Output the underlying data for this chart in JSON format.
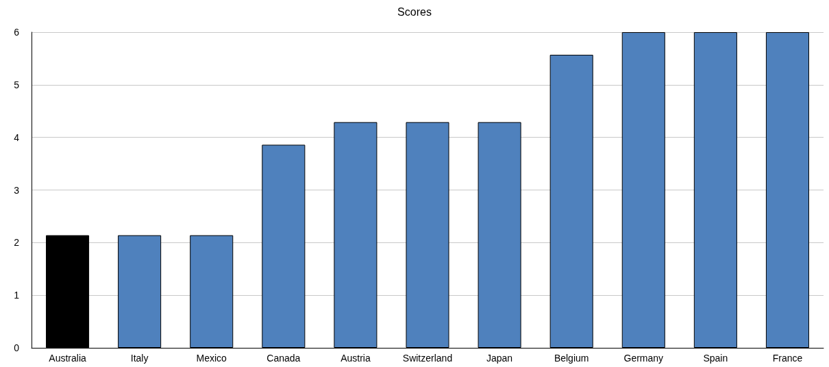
{
  "chart_data": {
    "type": "bar",
    "title": "Scores",
    "categories": [
      "Australia",
      "Italy",
      "Mexico",
      "Canada",
      "Austria",
      "Switzerland",
      "Japan",
      "Belgium",
      "Germany",
      "Spain",
      "France"
    ],
    "values": [
      2.14,
      2.14,
      2.14,
      3.86,
      4.29,
      4.29,
      4.29,
      5.57,
      6,
      6,
      6
    ],
    "colors": [
      "#000000",
      "#4f81bd",
      "#4f81bd",
      "#4f81bd",
      "#4f81bd",
      "#4f81bd",
      "#4f81bd",
      "#4f81bd",
      "#4f81bd",
      "#4f81bd",
      "#4f81bd"
    ],
    "ylim": [
      0,
      6
    ],
    "yticks": [
      0,
      1,
      2,
      3,
      4,
      5,
      6
    ],
    "grid": "y"
  }
}
